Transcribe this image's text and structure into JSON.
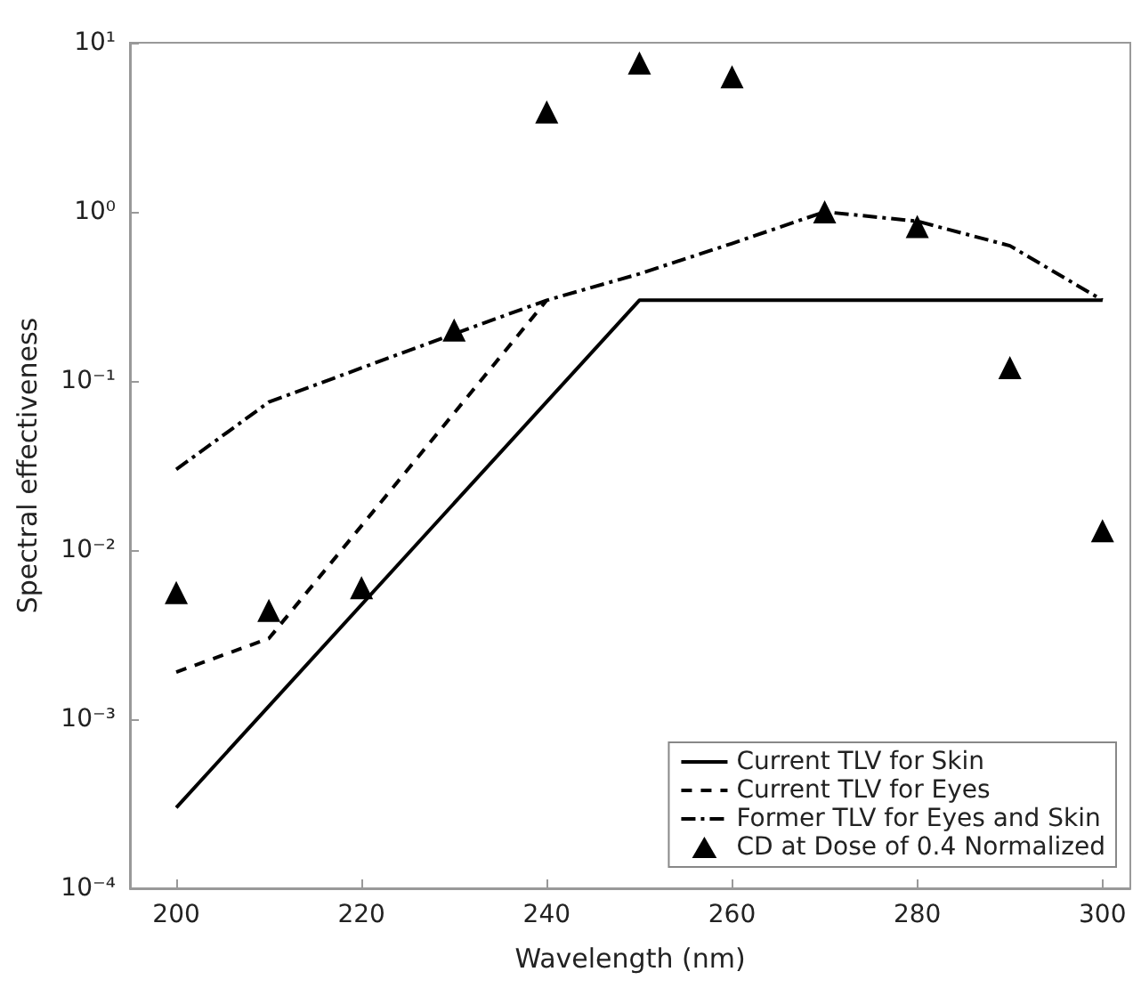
{
  "chart_data": {
    "type": "line",
    "xlabel": "Wavelength (nm)",
    "ylabel": "Spectral effectiveness",
    "log": "y",
    "grid": false,
    "legend": "bottom right",
    "xlim": [
      195,
      303
    ],
    "xticks": [
      200,
      220,
      240,
      260,
      280,
      300
    ],
    "ylim": [
      0.0001,
      10
    ],
    "yticks": [
      {
        "value": 0.0001,
        "label": "10⁻⁴"
      },
      {
        "value": 0.001,
        "label": "10⁻³"
      },
      {
        "value": 0.01,
        "label": "10⁻²"
      },
      {
        "value": 0.1,
        "label": "10⁻¹"
      },
      {
        "value": 1,
        "label": "10⁰"
      },
      {
        "value": 10,
        "label": "10¹"
      }
    ],
    "series": [
      {
        "name": "Current TLV for Skin",
        "color": "#000000",
        "line_style": "solid",
        "marker": "none",
        "x": [
          200,
          250,
          300
        ],
        "values": [
          0.0003,
          0.3,
          0.3
        ]
      },
      {
        "name": "Current TLV for Eyes",
        "color": "#000000",
        "line_style": "dashed",
        "marker": "none",
        "x": [
          200,
          210,
          240
        ],
        "values": [
          0.0019,
          0.003,
          0.3
        ]
      },
      {
        "name": "Former TLV for Eyes and Skin",
        "color": "#000000",
        "line_style": "dashdot",
        "marker": "none",
        "x": [
          200,
          210,
          230,
          240,
          250,
          260,
          270,
          280,
          290,
          300
        ],
        "values": [
          0.03,
          0.075,
          0.19,
          0.3,
          0.43,
          0.65,
          1.0,
          0.88,
          0.63,
          0.3
        ]
      },
      {
        "name": "CD at Dose of 0.4 Normalized",
        "type": "scatter",
        "color": "#000000",
        "marker": "triangle",
        "x": [
          200,
          210,
          220,
          230,
          240,
          250,
          260,
          270,
          280,
          290,
          300
        ],
        "values": [
          0.0056,
          0.0044,
          0.006,
          0.2,
          3.9,
          7.6,
          6.3,
          1.0,
          0.82,
          0.12,
          0.013
        ]
      }
    ]
  }
}
